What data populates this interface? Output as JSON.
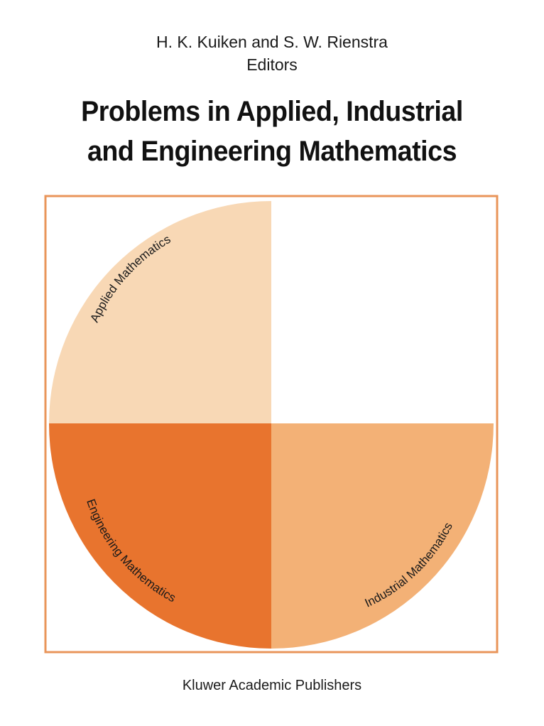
{
  "cover": {
    "authors": "H. K. Kuiken and S. W. Rienstra",
    "editors_label": "Editors",
    "title_line_1": "Problems in Applied, Industrial",
    "title_line_2": "and Engineering Mathematics",
    "publisher": "Kluwer Academic Publishers"
  },
  "emblem": {
    "labels": {
      "applied": "Applied Mathematics",
      "engineering": "Engineering Mathematics",
      "industrial": "Industrial Mathematics"
    },
    "colors": {
      "frame": "#E9955A",
      "applied_fill": "#F8D8B5",
      "engineering_fill": "#E8742E",
      "industrial_fill": "#F3B176"
    }
  }
}
